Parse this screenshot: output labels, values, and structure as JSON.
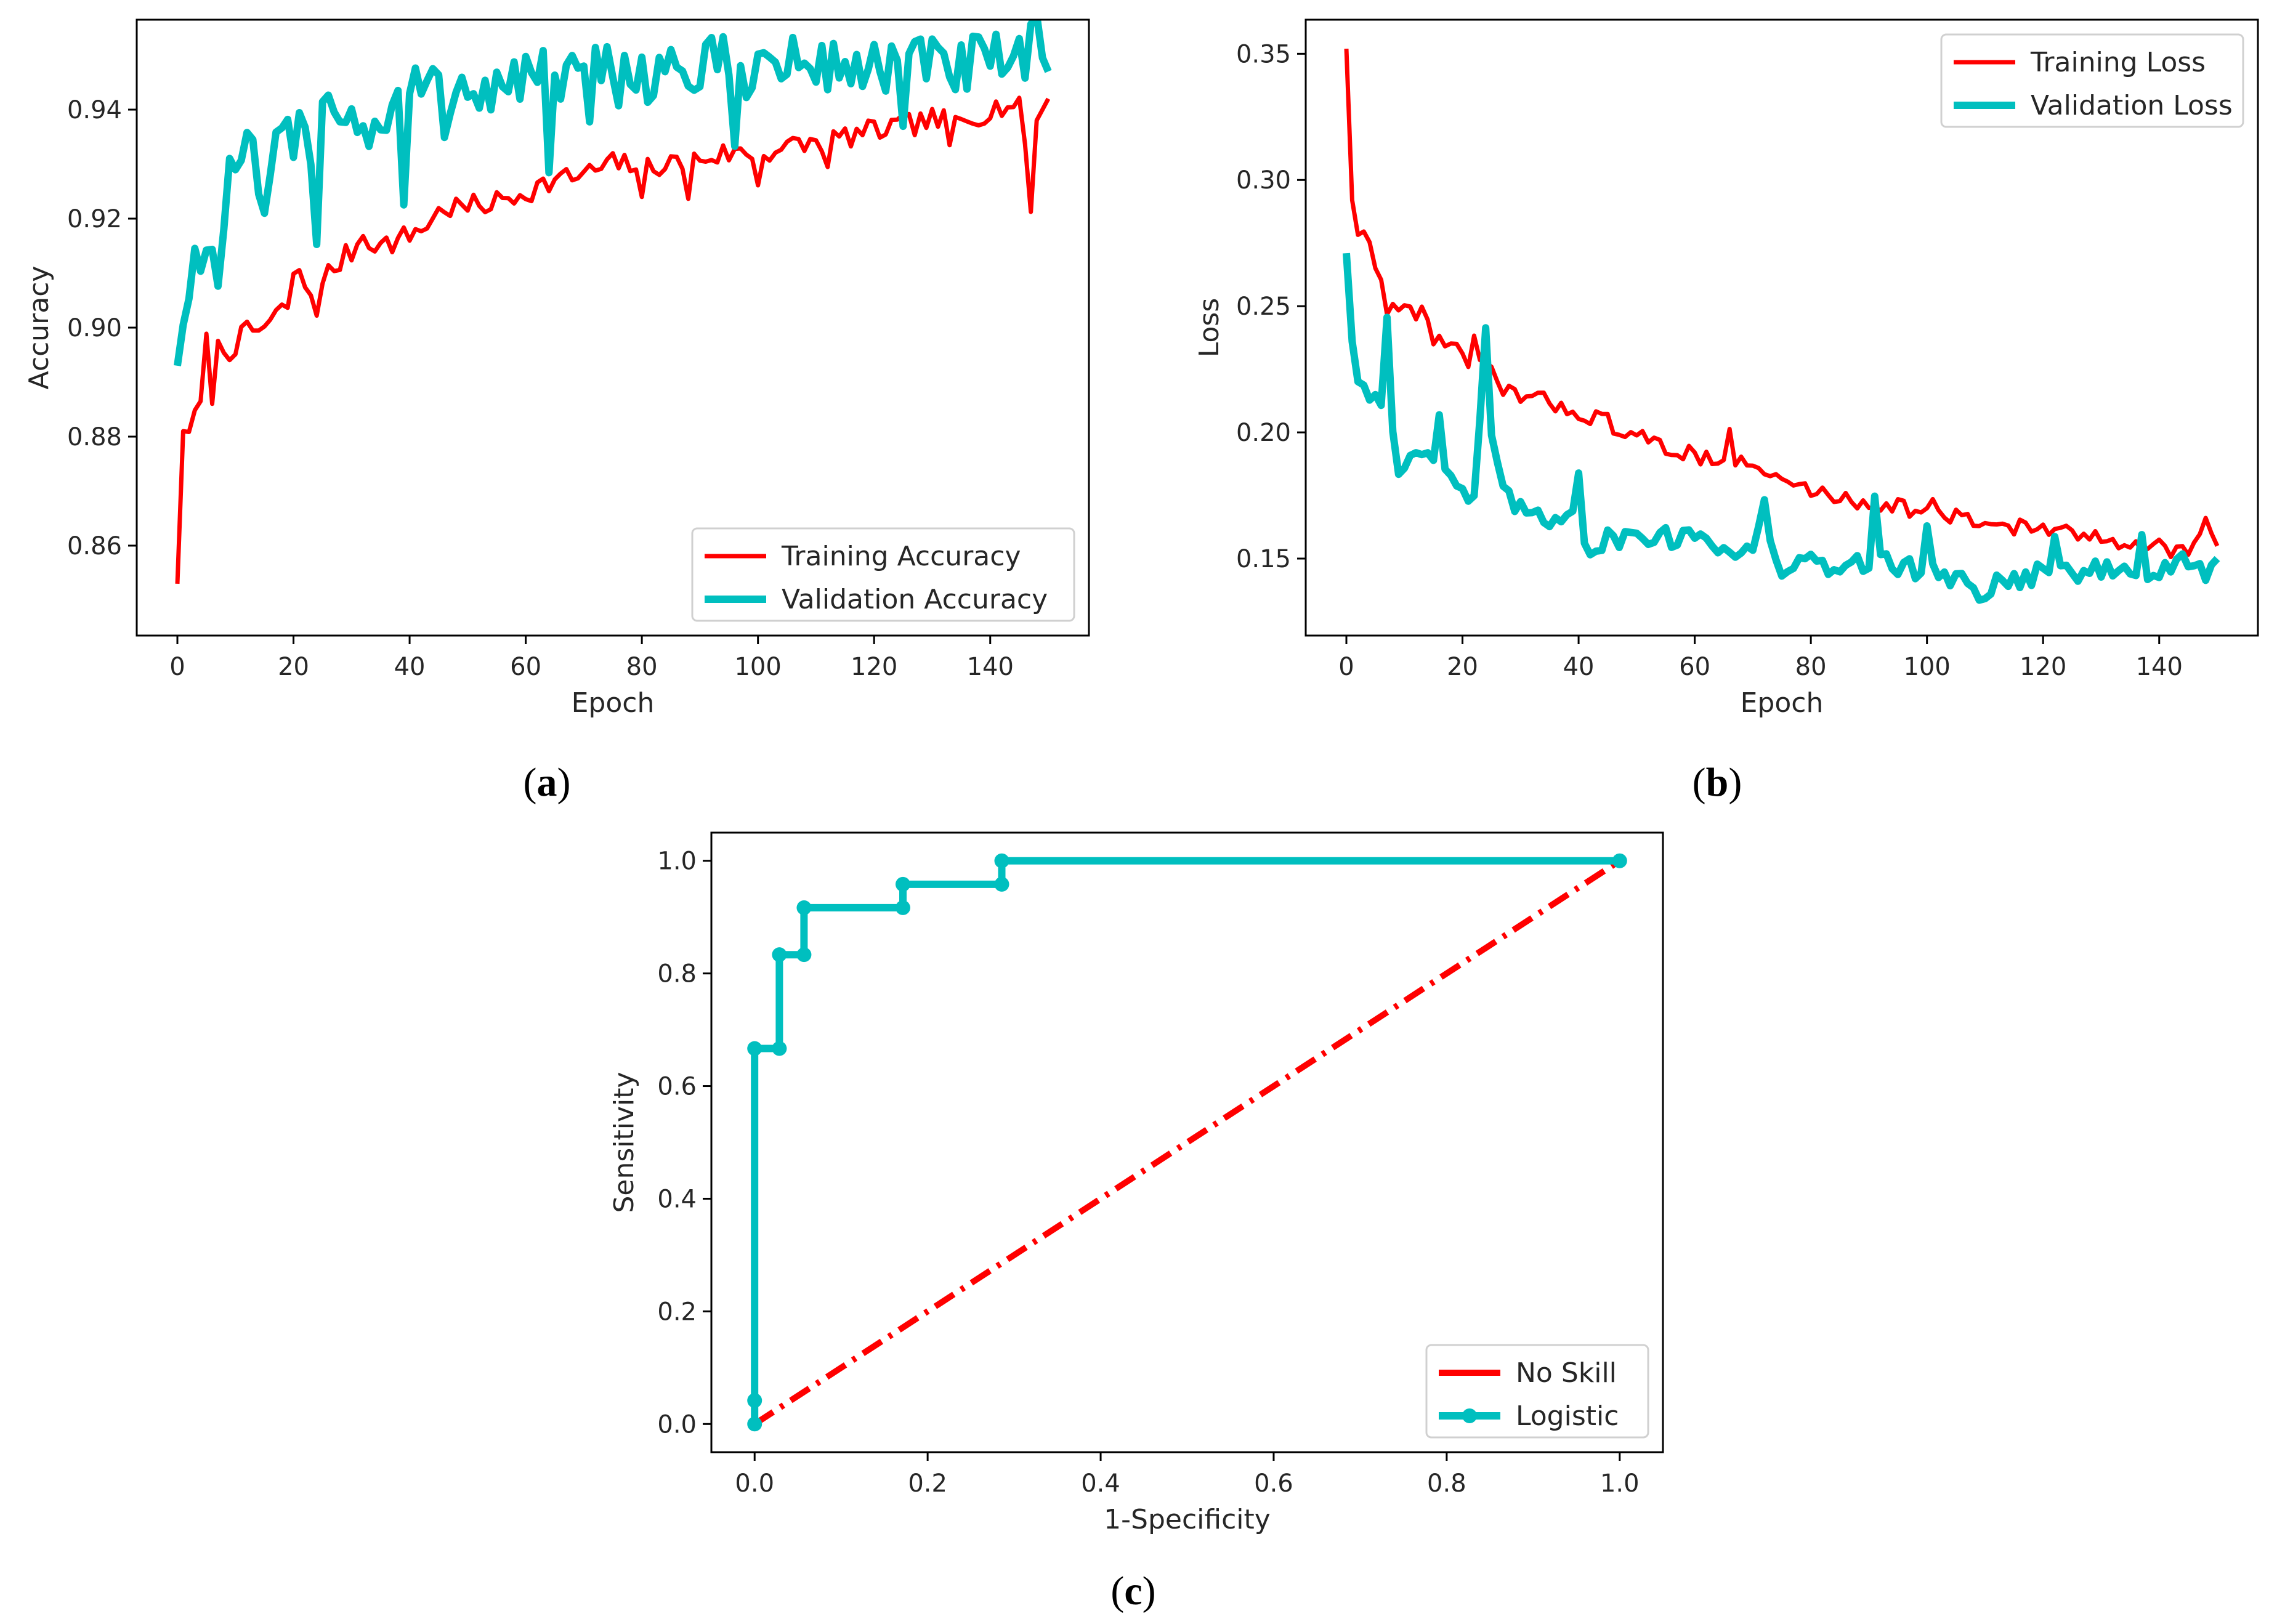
{
  "chart_data": [
    {
      "panel": "a",
      "caption": {
        "open": "(",
        "letter": "a",
        "close": ")"
      },
      "type": "line",
      "xlabel": "Epoch",
      "ylabel": "Accuracy",
      "xlim": [
        -7,
        157
      ],
      "ylim": [
        0.8435,
        0.9565
      ],
      "xticks": [
        0,
        20,
        40,
        60,
        80,
        100,
        120,
        140
      ],
      "xtick_labels": [
        "0",
        "20",
        "40",
        "60",
        "80",
        "100",
        "120",
        "140"
      ],
      "yticks": [
        0.86,
        0.88,
        0.9,
        0.92,
        0.94
      ],
      "ytick_labels": [
        "0.86",
        "0.88",
        "0.90",
        "0.92",
        "0.94"
      ],
      "legend_position": "lower right",
      "series": [
        {
          "name": "Training Accuracy",
          "color": "#ff0000",
          "anchors": [
            [
              0,
              0.853
            ],
            [
              1,
              0.881
            ],
            [
              3,
              0.883
            ],
            [
              4,
              0.886
            ],
            [
              5,
              0.897
            ],
            [
              6,
              0.888
            ],
            [
              7,
              0.896
            ],
            [
              9,
              0.896
            ],
            [
              12,
              0.899
            ],
            [
              15,
              0.9
            ],
            [
              17,
              0.902
            ],
            [
              19,
              0.904
            ],
            [
              20,
              0.91
            ],
            [
              22,
              0.908
            ],
            [
              24,
              0.904
            ],
            [
              26,
              0.91
            ],
            [
              28,
              0.912
            ],
            [
              30,
              0.914
            ],
            [
              32,
              0.917
            ],
            [
              35,
              0.915
            ],
            [
              38,
              0.916
            ],
            [
              40,
              0.917
            ],
            [
              43,
              0.919
            ],
            [
              46,
              0.922
            ],
            [
              50,
              0.922
            ],
            [
              55,
              0.923
            ],
            [
              60,
              0.925
            ],
            [
              65,
              0.927
            ],
            [
              70,
              0.928
            ],
            [
              75,
              0.93
            ],
            [
              80,
              0.93
            ],
            [
              85,
              0.93
            ],
            [
              90,
              0.931
            ],
            [
              95,
              0.932
            ],
            [
              100,
              0.932
            ],
            [
              105,
              0.933
            ],
            [
              110,
              0.934
            ],
            [
              115,
              0.935
            ],
            [
              120,
              0.936
            ],
            [
              125,
              0.937
            ],
            [
              130,
              0.938
            ],
            [
              135,
              0.938
            ],
            [
              140,
              0.94
            ],
            [
              143,
              0.941
            ],
            [
              145,
              0.94
            ],
            [
              147,
              0.93
            ],
            [
              148,
              0.938
            ],
            [
              150,
              0.942
            ]
          ],
          "noise": 0.0022,
          "spikes": [
            [
              80,
              -0.008
            ],
            [
              88,
              -0.007
            ],
            [
              100,
              -0.006
            ],
            [
              112,
              -0.006
            ],
            [
              133,
              -0.006
            ],
            [
              147,
              -0.009
            ]
          ]
        },
        {
          "name": "Validation Accuracy",
          "color": "#00bfbf",
          "anchors": [
            [
              0,
              0.893
            ],
            [
              2,
              0.908
            ],
            [
              4,
              0.916
            ],
            [
              6,
              0.912
            ],
            [
              8,
              0.922
            ],
            [
              10,
              0.93
            ],
            [
              12,
              0.93
            ],
            [
              14,
              0.928
            ],
            [
              16,
              0.925
            ],
            [
              18,
              0.935
            ],
            [
              20,
              0.932
            ],
            [
              22,
              0.938
            ],
            [
              24,
              0.932
            ],
            [
              26,
              0.946
            ],
            [
              28,
              0.94
            ],
            [
              30,
              0.938
            ],
            [
              35,
              0.937
            ],
            [
              40,
              0.944
            ],
            [
              45,
              0.944
            ],
            [
              50,
              0.945
            ],
            [
              55,
              0.944
            ],
            [
              60,
              0.946
            ],
            [
              65,
              0.945
            ],
            [
              70,
              0.946
            ],
            [
              75,
              0.946
            ],
            [
              80,
              0.947
            ],
            [
              85,
              0.947
            ],
            [
              90,
              0.947
            ],
            [
              95,
              0.948
            ],
            [
              100,
              0.948
            ],
            [
              105,
              0.948
            ],
            [
              110,
              0.948
            ],
            [
              115,
              0.948
            ],
            [
              120,
              0.948
            ],
            [
              125,
              0.948
            ],
            [
              130,
              0.948
            ],
            [
              135,
              0.948
            ],
            [
              140,
              0.948
            ],
            [
              145,
              0.948
            ],
            [
              148,
              0.952
            ],
            [
              150,
              0.947
            ]
          ],
          "noise": 0.006,
          "spikes": [
            [
              7,
              -0.008
            ],
            [
              15,
              -0.01
            ],
            [
              24,
              -0.012
            ],
            [
              39,
              -0.022
            ],
            [
              46,
              -0.014
            ],
            [
              64,
              -0.012
            ],
            [
              71,
              -0.013
            ],
            [
              96,
              -0.014
            ],
            [
              125,
              -0.012
            ]
          ]
        }
      ]
    },
    {
      "panel": "b",
      "caption": {
        "open": "(",
        "letter": "b",
        "close": ")"
      },
      "type": "line",
      "xlabel": "Epoch",
      "ylabel": "Loss",
      "xlim": [
        -7,
        157
      ],
      "ylim": [
        0.1195,
        0.3635
      ],
      "xticks": [
        0,
        20,
        40,
        60,
        80,
        100,
        120,
        140
      ],
      "xtick_labels": [
        "0",
        "20",
        "40",
        "60",
        "80",
        "100",
        "120",
        "140"
      ],
      "yticks": [
        0.15,
        0.2,
        0.25,
        0.3,
        0.35
      ],
      "ytick_labels": [
        "0.15",
        "0.20",
        "0.25",
        "0.30",
        "0.35"
      ],
      "legend_position": "upper right",
      "series": [
        {
          "name": "Training Loss",
          "color": "#ff0000",
          "anchors": [
            [
              0,
              0.352
            ],
            [
              1,
              0.292
            ],
            [
              2,
              0.28
            ],
            [
              3,
              0.278
            ],
            [
              5,
              0.268
            ],
            [
              7,
              0.25
            ],
            [
              10,
              0.248
            ],
            [
              13,
              0.248
            ],
            [
              15,
              0.238
            ],
            [
              18,
              0.235
            ],
            [
              21,
              0.227
            ],
            [
              24,
              0.225
            ],
            [
              27,
              0.218
            ],
            [
              30,
              0.214
            ],
            [
              35,
              0.212
            ],
            [
              40,
              0.208
            ],
            [
              45,
              0.204
            ],
            [
              50,
              0.198
            ],
            [
              55,
              0.194
            ],
            [
              60,
              0.191
            ],
            [
              65,
              0.19
            ],
            [
              70,
              0.186
            ],
            [
              75,
              0.181
            ],
            [
              80,
              0.177
            ],
            [
              85,
              0.174
            ],
            [
              90,
              0.172
            ],
            [
              95,
              0.171
            ],
            [
              100,
              0.168
            ],
            [
              105,
              0.166
            ],
            [
              110,
              0.164
            ],
            [
              115,
              0.163
            ],
            [
              120,
              0.162
            ],
            [
              125,
              0.159
            ],
            [
              130,
              0.158
            ],
            [
              135,
              0.157
            ],
            [
              140,
              0.155
            ],
            [
              145,
              0.152
            ],
            [
              148,
              0.165
            ],
            [
              150,
              0.155
            ]
          ],
          "noise": 0.0035,
          "spikes": [
            [
              22,
              0.01
            ],
            [
              66,
              0.01
            ],
            [
              101,
              0.006
            ]
          ]
        },
        {
          "name": "Validation Loss",
          "color": "#00bfbf",
          "anchors": [
            [
              0,
              0.271
            ],
            [
              1,
              0.236
            ],
            [
              2,
              0.222
            ],
            [
              4,
              0.215
            ],
            [
              6,
              0.212
            ],
            [
              7,
              0.245
            ],
            [
              8,
              0.2
            ],
            [
              9,
              0.185
            ],
            [
              12,
              0.196
            ],
            [
              15,
              0.19
            ],
            [
              18,
              0.184
            ],
            [
              20,
              0.176
            ],
            [
              22,
              0.172
            ],
            [
              24,
              0.238
            ],
            [
              25,
              0.195
            ],
            [
              27,
              0.175
            ],
            [
              30,
              0.17
            ],
            [
              33,
              0.165
            ],
            [
              36,
              0.165
            ],
            [
              39,
              0.172
            ],
            [
              40,
              0.16
            ],
            [
              42,
              0.155
            ],
            [
              46,
              0.158
            ],
            [
              50,
              0.16
            ],
            [
              55,
              0.158
            ],
            [
              60,
              0.16
            ],
            [
              65,
              0.155
            ],
            [
              70,
              0.152
            ],
            [
              72,
              0.17
            ],
            [
              74,
              0.146
            ],
            [
              78,
              0.148
            ],
            [
              82,
              0.147
            ],
            [
              86,
              0.146
            ],
            [
              90,
              0.15
            ],
            [
              95,
              0.148
            ],
            [
              100,
              0.145
            ],
            [
              105,
              0.143
            ],
            [
              108,
              0.138
            ],
            [
              110,
              0.137
            ],
            [
              112,
              0.14
            ],
            [
              115,
              0.142
            ],
            [
              120,
              0.145
            ],
            [
              125,
              0.145
            ],
            [
              130,
              0.145
            ],
            [
              135,
              0.145
            ],
            [
              140,
              0.145
            ],
            [
              145,
              0.148
            ],
            [
              148,
              0.145
            ],
            [
              150,
              0.15
            ]
          ],
          "noise": 0.0045,
          "spikes": [
            [
              16,
              0.016
            ],
            [
              40,
              0.026
            ],
            [
              91,
              0.022
            ],
            [
              100,
              0.014
            ],
            [
              122,
              0.014
            ],
            [
              137,
              0.012
            ]
          ]
        }
      ]
    },
    {
      "panel": "c",
      "caption": {
        "open": "(",
        "letter": "c",
        "close": ")"
      },
      "type": "line",
      "xlabel": "1-Specificity",
      "ylabel": "Sensitivity",
      "xlim": [
        -0.05,
        1.05
      ],
      "ylim": [
        -0.05,
        1.05
      ],
      "xticks": [
        0.0,
        0.2,
        0.4,
        0.6,
        0.8,
        1.0
      ],
      "xtick_labels": [
        "0.0",
        "0.2",
        "0.4",
        "0.6",
        "0.8",
        "1.0"
      ],
      "yticks": [
        0.0,
        0.2,
        0.4,
        0.6,
        0.8,
        1.0
      ],
      "ytick_labels": [
        "0.0",
        "0.2",
        "0.4",
        "0.6",
        "0.8",
        "1.0"
      ],
      "legend_position": "lower right",
      "series": [
        {
          "name": "No Skill",
          "color": "#ff0000",
          "style": "dashdot",
          "x": [
            0.0,
            1.0
          ],
          "y": [
            0.0,
            1.0
          ]
        },
        {
          "name": "Logistic",
          "color": "#00bfbf",
          "style": "solid",
          "marker": "dot",
          "x": [
            0.0,
            0.0,
            0.0,
            0.0286,
            0.0286,
            0.0571,
            0.0571,
            0.1714,
            0.1714,
            0.2857,
            0.2857,
            1.0
          ],
          "y": [
            0.0,
            0.0417,
            0.6667,
            0.6667,
            0.8333,
            0.8333,
            0.9167,
            0.9167,
            0.9583,
            0.9583,
            1.0,
            1.0
          ]
        }
      ]
    }
  ]
}
